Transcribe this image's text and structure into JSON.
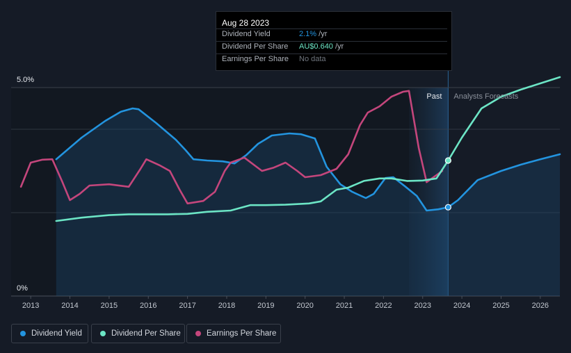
{
  "chart_data": {
    "type": "line",
    "y_axis": {
      "top_label": "5.0%",
      "bottom_label": "0%",
      "ylim": [
        0,
        5
      ]
    },
    "x_ticks": [
      "2013",
      "2014",
      "2015",
      "2016",
      "2017",
      "2018",
      "2019",
      "2020",
      "2021",
      "2022",
      "2023",
      "2024",
      "2025",
      "2026"
    ],
    "xlim": [
      2012.5,
      2026.5
    ],
    "period_labels": {
      "past": "Past",
      "forecast": "Analysts Forecasts"
    },
    "past_band": [
      2022.65,
      2023.65
    ],
    "series": [
      {
        "name": "Dividend Yield",
        "color": "#2394df",
        "points": [
          [
            2013.65,
            3.28
          ],
          [
            2014.3,
            3.8
          ],
          [
            2014.9,
            4.2
          ],
          [
            2015.3,
            4.42
          ],
          [
            2015.6,
            4.5
          ],
          [
            2015.75,
            4.48
          ],
          [
            2016.2,
            4.15
          ],
          [
            2016.7,
            3.75
          ],
          [
            2016.95,
            3.5
          ],
          [
            2017.15,
            3.28
          ],
          [
            2017.5,
            3.25
          ],
          [
            2017.9,
            3.23
          ],
          [
            2018.2,
            3.18
          ],
          [
            2018.5,
            3.38
          ],
          [
            2018.8,
            3.65
          ],
          [
            2019.15,
            3.85
          ],
          [
            2019.6,
            3.9
          ],
          [
            2019.9,
            3.88
          ],
          [
            2020.25,
            3.78
          ],
          [
            2020.55,
            3.1
          ],
          [
            2020.9,
            2.68
          ],
          [
            2021.2,
            2.5
          ],
          [
            2021.55,
            2.35
          ],
          [
            2021.75,
            2.45
          ],
          [
            2022.05,
            2.83
          ],
          [
            2022.25,
            2.85
          ],
          [
            2022.55,
            2.63
          ],
          [
            2022.85,
            2.4
          ],
          [
            2023.1,
            2.05
          ],
          [
            2023.4,
            2.08
          ],
          [
            2023.65,
            2.13
          ],
          [
            2023.9,
            2.3
          ],
          [
            2024.4,
            2.78
          ],
          [
            2025.0,
            3.0
          ],
          [
            2025.5,
            3.15
          ],
          [
            2026.0,
            3.28
          ],
          [
            2026.5,
            3.4
          ]
        ]
      },
      {
        "name": "Dividend Per Share",
        "color": "#6ce5c5",
        "points": [
          [
            2013.65,
            1.8
          ],
          [
            2014.3,
            1.88
          ],
          [
            2015.0,
            1.94
          ],
          [
            2015.5,
            1.96
          ],
          [
            2016.0,
            1.96
          ],
          [
            2016.5,
            1.96
          ],
          [
            2017.0,
            1.97
          ],
          [
            2017.5,
            2.02
          ],
          [
            2018.1,
            2.05
          ],
          [
            2018.6,
            2.18
          ],
          [
            2019.0,
            2.18
          ],
          [
            2019.5,
            2.19
          ],
          [
            2020.1,
            2.22
          ],
          [
            2020.4,
            2.27
          ],
          [
            2020.8,
            2.55
          ],
          [
            2021.1,
            2.6
          ],
          [
            2021.5,
            2.76
          ],
          [
            2021.9,
            2.82
          ],
          [
            2022.2,
            2.82
          ],
          [
            2022.6,
            2.76
          ],
          [
            2023.0,
            2.77
          ],
          [
            2023.35,
            2.82
          ],
          [
            2023.65,
            3.25
          ],
          [
            2024.0,
            3.8
          ],
          [
            2024.5,
            4.5
          ],
          [
            2025.0,
            4.78
          ],
          [
            2025.5,
            4.95
          ],
          [
            2026.0,
            5.1
          ],
          [
            2026.5,
            5.25
          ]
        ]
      },
      {
        "name": "Earnings Per Share",
        "color": "#c4467c",
        "points": [
          [
            2012.75,
            2.62
          ],
          [
            2013.0,
            3.2
          ],
          [
            2013.3,
            3.27
          ],
          [
            2013.55,
            3.28
          ],
          [
            2013.8,
            2.75
          ],
          [
            2014.0,
            2.3
          ],
          [
            2014.25,
            2.45
          ],
          [
            2014.5,
            2.65
          ],
          [
            2015.0,
            2.68
          ],
          [
            2015.5,
            2.62
          ],
          [
            2015.8,
            3.05
          ],
          [
            2015.95,
            3.28
          ],
          [
            2016.3,
            3.13
          ],
          [
            2016.55,
            3.0
          ],
          [
            2016.8,
            2.55
          ],
          [
            2017.0,
            2.22
          ],
          [
            2017.4,
            2.28
          ],
          [
            2017.7,
            2.5
          ],
          [
            2017.95,
            3.0
          ],
          [
            2018.1,
            3.2
          ],
          [
            2018.45,
            3.32
          ],
          [
            2018.9,
            3.0
          ],
          [
            2019.2,
            3.08
          ],
          [
            2019.5,
            3.2
          ],
          [
            2019.8,
            3.0
          ],
          [
            2020.0,
            2.85
          ],
          [
            2020.4,
            2.9
          ],
          [
            2020.8,
            3.05
          ],
          [
            2021.1,
            3.4
          ],
          [
            2021.4,
            4.1
          ],
          [
            2021.6,
            4.4
          ],
          [
            2021.9,
            4.55
          ],
          [
            2022.2,
            4.78
          ],
          [
            2022.5,
            4.9
          ],
          [
            2022.65,
            4.92
          ],
          [
            2022.9,
            3.55
          ],
          [
            2023.1,
            2.73
          ],
          [
            2023.5,
            3.0
          ]
        ]
      }
    ],
    "markers": [
      {
        "series": "Dividend Per Share",
        "x": 2023.65,
        "y": 3.25
      },
      {
        "series": "Dividend Yield",
        "x": 2023.65,
        "y": 2.13
      }
    ]
  },
  "tooltip": {
    "date": "Aug 28 2023",
    "rows": [
      {
        "label": "Dividend Yield",
        "value": "2.1%",
        "unit": "/yr",
        "color": "#2394df"
      },
      {
        "label": "Dividend Per Share",
        "value": "AU$0.640",
        "unit": "/yr",
        "color": "#6ce5c5"
      },
      {
        "label": "Earnings Per Share",
        "value": "No data",
        "unit": "",
        "color": "#6f757e"
      }
    ]
  },
  "legend": [
    {
      "label": "Dividend Yield",
      "color": "#2394df"
    },
    {
      "label": "Dividend Per Share",
      "color": "#6ce5c5"
    },
    {
      "label": "Earnings Per Share",
      "color": "#c4467c"
    }
  ]
}
